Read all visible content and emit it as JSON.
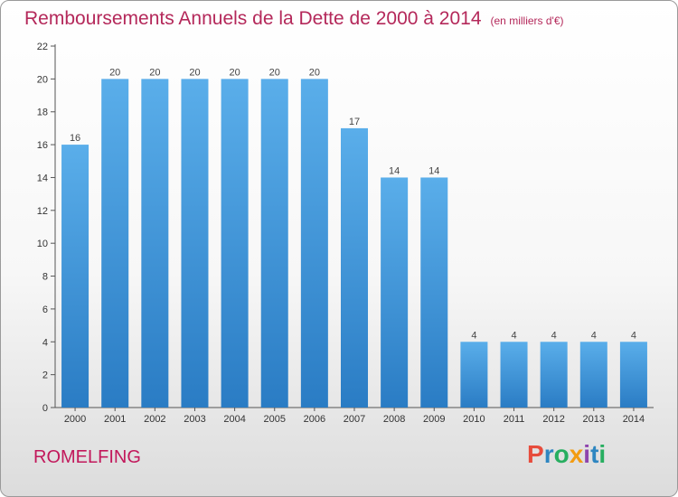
{
  "title": "Remboursements Annuels de la Dette de 2000 à 2014",
  "unit_note": "(en milliers d'€)",
  "commune": "ROMELFING",
  "logo": {
    "text": "Proxiti",
    "letters": [
      {
        "char": "P",
        "color": "#e74c3c"
      },
      {
        "char": "r",
        "color": "#2e86c1"
      },
      {
        "char": "o",
        "color": "#27ae60"
      },
      {
        "char": "x",
        "color": "#f39c12"
      },
      {
        "char": "i",
        "color": "#8e44ad"
      },
      {
        "char": "t",
        "color": "#2e86c1"
      },
      {
        "char": "i",
        "color": "#27ae60"
      }
    ]
  },
  "chart_data": {
    "type": "bar",
    "categories": [
      "2000",
      "2001",
      "2002",
      "2003",
      "2004",
      "2005",
      "2006",
      "2007",
      "2008",
      "2009",
      "2010",
      "2011",
      "2012",
      "2013",
      "2014"
    ],
    "values": [
      16,
      20,
      20,
      20,
      20,
      20,
      20,
      17,
      14,
      14,
      4,
      4,
      4,
      4,
      4
    ],
    "data_labels": [
      "16",
      "20",
      "20",
      "20",
      "20",
      "20",
      "20",
      "17",
      "14",
      "14",
      "4",
      "4",
      "4",
      "4",
      "4"
    ],
    "title": "Remboursements Annuels de la Dette de 2000 à 2014",
    "ylim": [
      0,
      22
    ],
    "yticks": [
      0,
      2,
      4,
      6,
      8,
      10,
      12,
      14,
      16,
      18,
      20,
      22
    ],
    "grid": false,
    "bar_color": "#3a8fd6"
  }
}
